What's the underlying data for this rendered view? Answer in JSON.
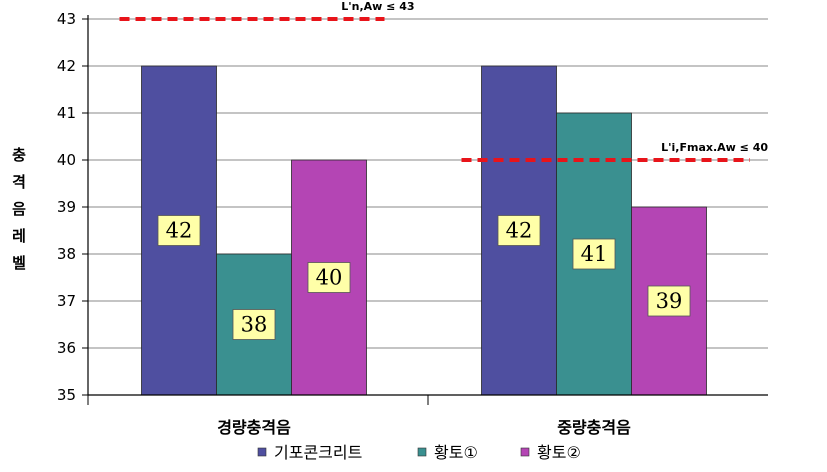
{
  "chart_data": {
    "type": "bar",
    "ylabel": "충격음레벨",
    "ylim": [
      35,
      43
    ],
    "yticks": [
      35,
      36,
      37,
      38,
      39,
      40,
      41,
      42,
      43
    ],
    "categories": [
      "경량충격음",
      "중량충격음"
    ],
    "series": [
      {
        "name": "기포콘크리트",
        "values": [
          42,
          42
        ],
        "color": "#4f4fa0"
      },
      {
        "name": "황토①",
        "values": [
          38,
          41
        ],
        "color": "#3a9090"
      },
      {
        "name": "황토②",
        "values": [
          40,
          39
        ],
        "color": "#b445b4"
      }
    ],
    "data_labels": true,
    "data_label_bg": "#ffffa8",
    "reference_lines": [
      {
        "label": "L'n,Aw ≤ 43",
        "value": 43,
        "category": "경량충격음",
        "color": "#e8141a"
      },
      {
        "label": "L'i,Fmax.Aw ≤ 40",
        "value": 40,
        "category": "중량충격음",
        "color": "#e8141a"
      }
    ],
    "legend_position": "bottom",
    "grid": "horizontal"
  }
}
